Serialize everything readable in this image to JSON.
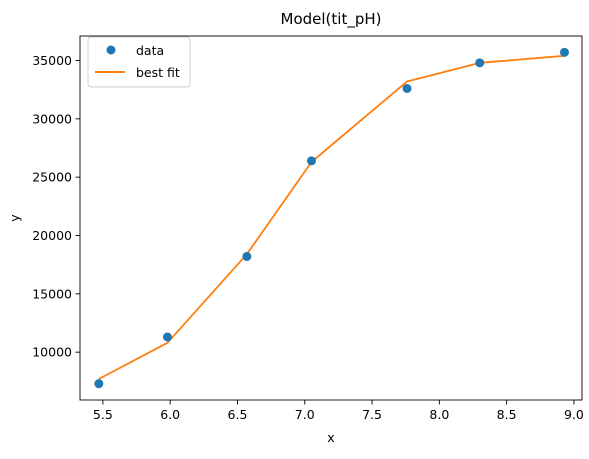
{
  "chart_data": {
    "type": "scatter",
    "title": "Model(tit_pH)",
    "xlabel": "x",
    "ylabel": "y",
    "xlim": [
      5.33,
      9.06
    ],
    "ylim": [
      5900,
      37100
    ],
    "xticks": [
      5.5,
      6.0,
      6.5,
      7.0,
      7.5,
      8.0,
      8.5,
      9.0
    ],
    "xtick_labels": [
      "5.5",
      "6.0",
      "6.5",
      "7.0",
      "7.5",
      "8.0",
      "8.5",
      "9.0"
    ],
    "yticks": [
      10000,
      15000,
      20000,
      25000,
      30000,
      35000
    ],
    "ytick_labels": [
      "10000",
      "15000",
      "20000",
      "25000",
      "30000",
      "35000"
    ],
    "grid": false,
    "legend_position": "upper-left",
    "series": [
      {
        "name": "data",
        "kind": "scatter",
        "color": "#1f77b4",
        "x": [
          5.47,
          5.98,
          6.57,
          7.05,
          7.76,
          8.3,
          8.93
        ],
        "y": [
          7300,
          11300,
          18200,
          26400,
          32600,
          34800,
          35700
        ]
      },
      {
        "name": "best fit",
        "kind": "line",
        "color": "#ff7f0e",
        "x": [
          5.47,
          5.98,
          6.57,
          7.05,
          7.76,
          8.3,
          8.93
        ],
        "y": [
          7700,
          10800,
          18400,
          26300,
          33200,
          34800,
          35400
        ]
      }
    ]
  }
}
